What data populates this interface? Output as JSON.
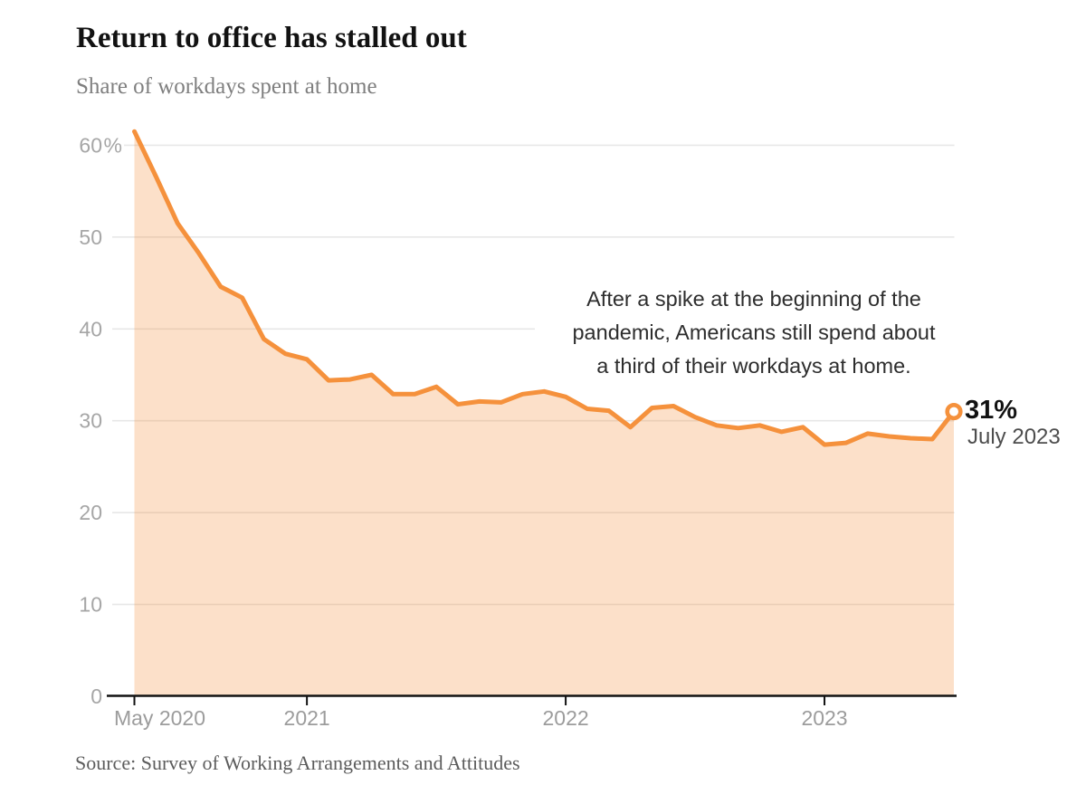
{
  "header": {
    "title": "Return to office has stalled out",
    "subtitle": "Share of workdays spent at home"
  },
  "annotation": {
    "text": "After a spike at the beginning of the\npandemic, Americans still spend about\na third of their workdays at home."
  },
  "endpoint": {
    "value_label": "31%",
    "date_label": "July 2023"
  },
  "source": {
    "text": "Source: Survey of Working Arrangements and Attitudes"
  },
  "colors": {
    "line": "#F5913C",
    "area_fill": "rgba(245,145,60,0.28)",
    "axis": "#121212",
    "gridline": "#e7e7e7",
    "y_label": "#a6a6a6",
    "x_label": "#9c9c9c",
    "endpoint_ring": "#F5913C",
    "endpoint_fill": "#ffffff"
  },
  "chart_data": {
    "type": "area",
    "title": "Return to office has stalled out",
    "subtitle": "Share of workdays spent at home",
    "grid": "horizontal",
    "legend": "none",
    "ylim": [
      0,
      62
    ],
    "y_tick_values": [
      0,
      10,
      20,
      30,
      40,
      50,
      60
    ],
    "y_tick_labels": [
      "0",
      "10",
      "20",
      "30",
      "40",
      "50",
      "60%"
    ],
    "x_ticks": [
      {
        "label": "May 2020",
        "month_index": 0
      },
      {
        "label": "2021",
        "month_index": 8
      },
      {
        "label": "2022",
        "month_index": 20
      },
      {
        "label": "2023",
        "month_index": 32
      }
    ],
    "x_months": [
      "2020-05",
      "2020-06",
      "2020-07",
      "2020-08",
      "2020-09",
      "2020-10",
      "2020-11",
      "2020-12",
      "2021-01",
      "2021-02",
      "2021-03",
      "2021-04",
      "2021-05",
      "2021-06",
      "2021-07",
      "2021-08",
      "2021-09",
      "2021-10",
      "2021-11",
      "2021-12",
      "2022-01",
      "2022-02",
      "2022-03",
      "2022-04",
      "2022-05",
      "2022-06",
      "2022-07",
      "2022-08",
      "2022-09",
      "2022-10",
      "2022-11",
      "2022-12",
      "2023-01",
      "2023-02",
      "2023-03",
      "2023-04",
      "2023-05",
      "2023-06",
      "2023-07"
    ],
    "series": [
      {
        "name": "Share of workdays spent at home (%)",
        "values": [
          61.5,
          56.6,
          51.5,
          48.2,
          44.6,
          43.4,
          38.9,
          37.3,
          36.7,
          34.4,
          34.5,
          35.0,
          32.9,
          32.9,
          33.7,
          31.8,
          32.1,
          32.0,
          32.9,
          33.2,
          32.6,
          31.3,
          31.1,
          29.3,
          31.4,
          31.6,
          30.4,
          29.5,
          29.2,
          29.5,
          28.8,
          29.3,
          27.4,
          27.6,
          28.6,
          28.3,
          28.1,
          28.0,
          31.0
        ]
      }
    ],
    "end_point": {
      "x": "2023-07",
      "value": 31.0,
      "value_label": "31%",
      "date_label": "July 2023"
    }
  }
}
